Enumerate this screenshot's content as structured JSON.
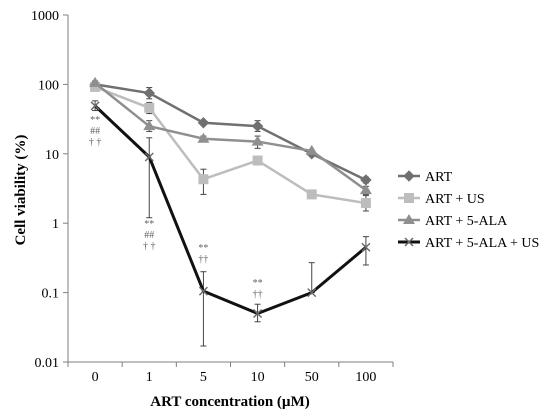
{
  "chart_data": {
    "type": "line",
    "xlabel": "ART concentration (µM)",
    "ylabel": "Cell viability (%)",
    "yscale": "log",
    "ylim": [
      0.01,
      1000
    ],
    "categories": [
      "0",
      "1",
      "5",
      "10",
      "50",
      "100"
    ],
    "y_ticks": [
      "0.01",
      "0.1",
      "1",
      "10",
      "100",
      "1000"
    ],
    "grid": false,
    "legend_position": "right",
    "series": [
      {
        "name": "ART",
        "color": "#707070",
        "marker": "diamond",
        "values": [
          100,
          75,
          28,
          25,
          10,
          4.2
        ],
        "err_up": [
          110,
          90,
          28,
          30,
          10,
          4.6
        ],
        "err_down": [
          92,
          62,
          28,
          21,
          10,
          3.8
        ]
      },
      {
        "name": "ART + US",
        "color": "#bdbdbd",
        "marker": "square",
        "values": [
          92,
          46,
          4.3,
          8,
          2.6,
          1.95
        ],
        "err_up": [
          100,
          55,
          6,
          8,
          2.6,
          2.5
        ],
        "err_down": [
          84,
          38,
          2.6,
          8,
          2.6,
          1.5
        ]
      },
      {
        "name": "ART + 5-ALA",
        "color": "#8f8f8f",
        "marker": "triangle",
        "values": [
          105,
          25,
          16.5,
          15,
          11,
          3
        ],
        "err_up": [
          112,
          30,
          18,
          18,
          11,
          3.4
        ],
        "err_down": [
          98,
          21,
          15,
          12,
          11,
          2.6
        ]
      },
      {
        "name": "ART + 5-ALA + US",
        "color": "#111111",
        "marker": "x",
        "values": [
          49,
          9,
          0.105,
          0.05,
          0.1,
          0.45
        ],
        "err_up": [
          58,
          17,
          0.2,
          0.068,
          0.27,
          0.64
        ],
        "err_down": [
          42,
          1.2,
          0.017,
          0.038,
          0.1,
          0.25
        ]
      }
    ],
    "annotations": [
      {
        "x_index": 0,
        "lines": [
          "**",
          "##",
          "† †"
        ]
      },
      {
        "x_index": 1,
        "lines": [
          "**",
          "##",
          "† †"
        ]
      },
      {
        "x_index": 2,
        "lines": [
          "**",
          "††"
        ]
      },
      {
        "x_index": 3,
        "lines": [
          "**",
          "††"
        ]
      }
    ]
  }
}
